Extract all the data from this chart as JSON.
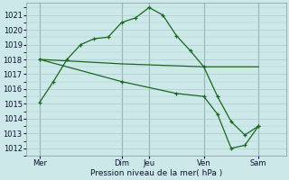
{
  "title": "",
  "xlabel": "Pression niveau de la mer( hPa )",
  "ylabel": "",
  "bg_color": "#cce8e8",
  "grid_color": "#aacccc",
  "line_color": "#1a6620",
  "ylim": [
    1011.5,
    1021.8
  ],
  "ytick_vals": [
    1012,
    1013,
    1014,
    1015,
    1016,
    1017,
    1018,
    1019,
    1020,
    1021
  ],
  "xlim": [
    0,
    9.5
  ],
  "xtick_labels": [
    "Mer",
    "Dim",
    "Jeu",
    "Ven",
    "Sam"
  ],
  "xtick_positions": [
    0.5,
    3.5,
    4.5,
    6.5,
    8.5
  ],
  "vline_positions": [
    0.5,
    3.5,
    4.5,
    6.5,
    8.5
  ],
  "line1_x": [
    0.5,
    1.0,
    1.5,
    2.0,
    2.5,
    3.0,
    3.5,
    4.0,
    4.5,
    5.0,
    5.5,
    6.0,
    6.5,
    7.0,
    7.5,
    8.0,
    8.5
  ],
  "line1_y": [
    1015.1,
    1016.5,
    1018.0,
    1019.0,
    1019.4,
    1019.5,
    1020.5,
    1020.8,
    1021.5,
    1021.0,
    1019.6,
    1018.6,
    1017.5,
    1015.5,
    1013.8,
    1012.9,
    1013.5
  ],
  "line2_x": [
    0.5,
    3.5,
    6.5,
    8.5
  ],
  "line2_y": [
    1018.0,
    1017.7,
    1017.5,
    1017.5
  ],
  "line3_x": [
    0.5,
    3.5,
    5.5,
    6.5,
    7.0,
    7.5,
    8.0,
    8.5
  ],
  "line3_y": [
    1018.0,
    1016.5,
    1015.7,
    1015.5,
    1014.3,
    1012.0,
    1012.2,
    1013.5
  ],
  "figsize": [
    3.2,
    2.0
  ],
  "dpi": 100
}
